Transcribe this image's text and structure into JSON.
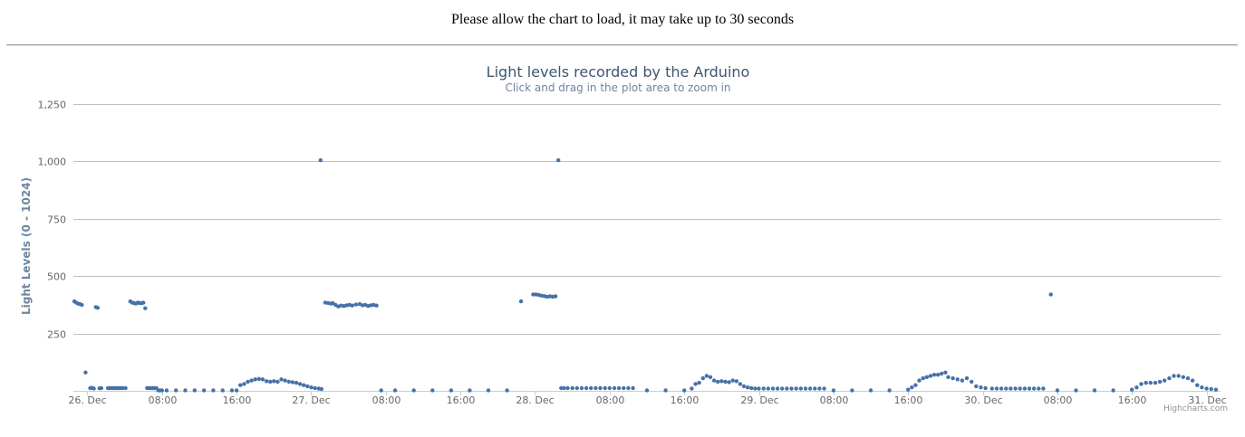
{
  "page": {
    "notice": "Please allow the chart to load, it may take up to 30 seconds"
  },
  "chart_data": {
    "type": "scatter",
    "title": "Light levels recorded by the Arduino",
    "subtitle": "Click and drag in the plot area to zoom in",
    "ylabel": "Light Levels (0 - 1024)",
    "xlabel": "",
    "ylim": [
      0,
      1250
    ],
    "yticks": [
      250,
      500,
      750,
      1000,
      1250
    ],
    "ytick_labels": [
      "250",
      "500",
      "750",
      "1,000",
      "1,250"
    ],
    "xlim_hours": [
      -1.5,
      121.5
    ],
    "xticks": [
      {
        "h": 0,
        "label": "26. Dec"
      },
      {
        "h": 8,
        "label": "08:00"
      },
      {
        "h": 16,
        "label": "16:00"
      },
      {
        "h": 24,
        "label": "27. Dec"
      },
      {
        "h": 32,
        "label": "08:00"
      },
      {
        "h": 40,
        "label": "16:00"
      },
      {
        "h": 48,
        "label": "28. Dec"
      },
      {
        "h": 56,
        "label": "08:00"
      },
      {
        "h": 64,
        "label": "16:00"
      },
      {
        "h": 72,
        "label": "29. Dec"
      },
      {
        "h": 80,
        "label": "08:00"
      },
      {
        "h": 88,
        "label": "16:00"
      },
      {
        "h": 96,
        "label": "30. Dec"
      },
      {
        "h": 104,
        "label": "08:00"
      },
      {
        "h": 112,
        "label": "16:00"
      },
      {
        "h": 120,
        "label": "31. Dec"
      }
    ],
    "grid": true,
    "legend": "none",
    "marker_color": "#4572a7",
    "credit": "Highcharts.com",
    "series": [
      {
        "x_hours": [
          -1.4,
          -1.2,
          -1.0,
          -0.8,
          -0.6,
          -0.2,
          0.3,
          0.5,
          0.7,
          0.9,
          1.1,
          1.3,
          1.5,
          2.2,
          2.4,
          2.6,
          2.8,
          3.0,
          3.2,
          3.4,
          3.6,
          3.8,
          4.1,
          4.6,
          4.8,
          5.0,
          5.2,
          5.4,
          5.6,
          5.8,
          6.0,
          6.2,
          6.4,
          6.6,
          6.8,
          7.0,
          7.2,
          7.4,
          7.6,
          7.8,
          8.0,
          8.5,
          9.5,
          10.5,
          11.5,
          12.5,
          13.5,
          14.5,
          15.5,
          16.0,
          16.4,
          16.8,
          17.2,
          17.6,
          18.0,
          18.4,
          18.8,
          19.2,
          19.6,
          20.0,
          20.4,
          20.8,
          21.2,
          21.6,
          22.0,
          22.4,
          22.8,
          23.2,
          23.6,
          24.0,
          24.4,
          24.8,
          25.1,
          25.0,
          25.5,
          25.8,
          26.1,
          26.3,
          26.6,
          26.9,
          27.2,
          27.5,
          27.8,
          28.1,
          28.4,
          28.8,
          29.2,
          29.5,
          29.8,
          30.1,
          30.4,
          30.7,
          31.0
        ],
        "y": [
          390,
          385,
          380,
          378,
          375,
          80,
          12,
          13,
          10,
          365,
          362,
          11,
          12,
          12,
          12,
          12,
          12,
          12,
          12,
          12,
          12,
          12,
          12,
          390,
          385,
          383,
          380,
          385,
          383,
          382,
          384,
          360,
          12,
          12,
          12,
          12,
          12,
          12,
          2,
          2,
          2,
          2,
          2,
          2,
          2,
          2,
          2,
          2,
          2,
          2,
          25,
          30,
          40,
          45,
          50,
          52,
          50,
          42,
          40,
          42,
          40,
          50,
          45,
          40,
          38,
          35,
          30,
          25,
          20,
          15,
          12,
          10,
          8,
          1005,
          385,
          383,
          380,
          382,
          375,
          368,
          372,
          370,
          373,
          375,
          372,
          376,
          378,
          373,
          375,
          370,
          373,
          375,
          372
        ]
      },
      {
        "x_hours": [
          31.5,
          33,
          35,
          37,
          39,
          41,
          43,
          45,
          46.5,
          47.8,
          48.1,
          48.4,
          48.7,
          49.0,
          49.3,
          49.6,
          49.9,
          50.2,
          50.5,
          50.8,
          51.1,
          51.5,
          52,
          52.5,
          53,
          53.5,
          54,
          54.5,
          55,
          55.5,
          56,
          56.5,
          57,
          57.5,
          58,
          58.5,
          60,
          62,
          64,
          64.8,
          65.2,
          65.6,
          66,
          66.4,
          66.8,
          67.2,
          67.6,
          68,
          68.4,
          68.8,
          69.2,
          69.6,
          70,
          70.4,
          70.8,
          71.2,
          71.6,
          72,
          72.5,
          73,
          73.5,
          74,
          74.5,
          75,
          75.5,
          76,
          76.5,
          77,
          77.5,
          78,
          78.5,
          79,
          80,
          82,
          84,
          86,
          88,
          88.4,
          88.8,
          89.2,
          89.6,
          90,
          90.4,
          90.8,
          91.2,
          91.6,
          92,
          92.3,
          92.8,
          93.3,
          93.8,
          94.3,
          94.8,
          95.3,
          95.8,
          96.3,
          97,
          97.5,
          98,
          98.5,
          99,
          99.5,
          100,
          100.5,
          101,
          101.5,
          102,
          102.5,
          103.3,
          104,
          106,
          108,
          110,
          112,
          112.5,
          113,
          113.5,
          114,
          114.5,
          115,
          115.5,
          116,
          116.5,
          117,
          117.5,
          118,
          118.5,
          119,
          119.5,
          120,
          120.5,
          121
        ],
        "y": [
          2,
          2,
          2,
          2,
          2,
          2,
          2,
          2,
          390,
          420,
          420,
          418,
          415,
          413,
          410,
          412,
          410,
          412,
          1005,
          12,
          12,
          12,
          12,
          12,
          12,
          12,
          12,
          12,
          12,
          12,
          12,
          12,
          12,
          12,
          12,
          12,
          2,
          2,
          2,
          10,
          30,
          35,
          55,
          65,
          60,
          45,
          40,
          42,
          40,
          38,
          45,
          42,
          30,
          20,
          15,
          12,
          10,
          10,
          10,
          10,
          10,
          10,
          10,
          10,
          10,
          10,
          10,
          10,
          10,
          10,
          10,
          10,
          2,
          2,
          2,
          2,
          5,
          15,
          25,
          45,
          55,
          60,
          65,
          70,
          70,
          75,
          80,
          60,
          55,
          50,
          45,
          55,
          40,
          20,
          15,
          12,
          10,
          10,
          10,
          10,
          10,
          10,
          10,
          10,
          10,
          10,
          10,
          10,
          420,
          2,
          2,
          2,
          2,
          5,
          15,
          30,
          35,
          35,
          35,
          40,
          45,
          55,
          65,
          65,
          60,
          55,
          45,
          25,
          15,
          10,
          8,
          5
        ]
      }
    ]
  }
}
